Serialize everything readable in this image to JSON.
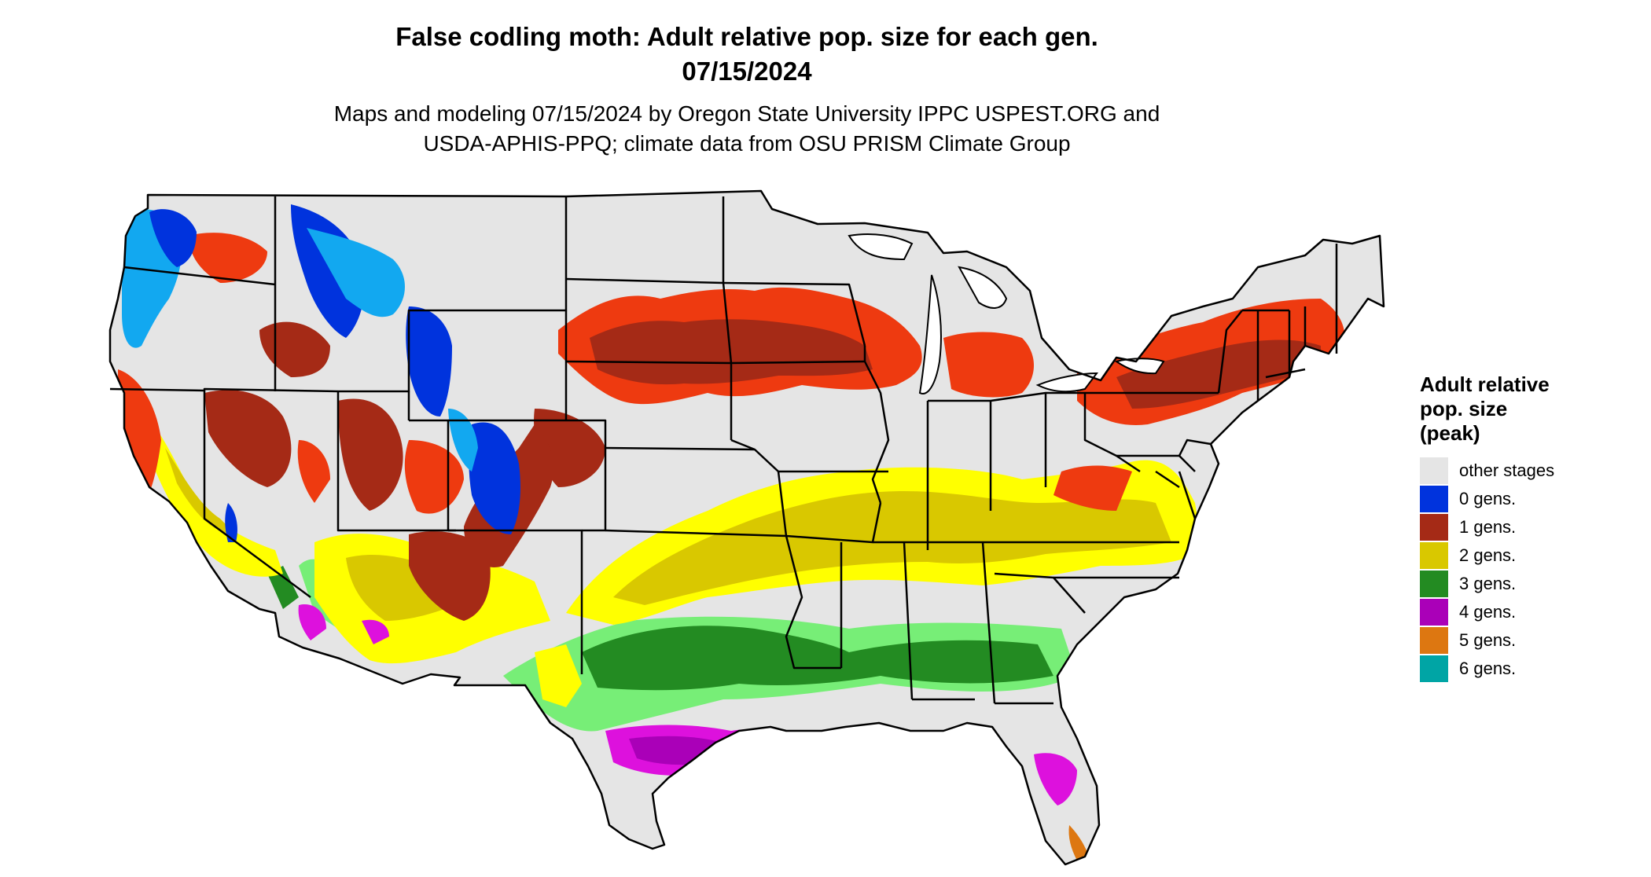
{
  "header": {
    "title_line1": "False codling moth: Adult relative pop. size for each gen.",
    "title_line2": "07/15/2024",
    "subtitle_line1": "Maps and modeling 07/15/2024 by Oregon State University IPPC USPEST.ORG and",
    "subtitle_line2": "USDA-APHIS-PPQ; climate data from OSU PRISM Climate Group"
  },
  "legend": {
    "title_line1": "Adult relative",
    "title_line2": "pop. size",
    "title_line3": "(peak)",
    "items": [
      {
        "label": "other stages",
        "color": "#e5e5e5"
      },
      {
        "label": "0 gens.",
        "color": "#0033dd"
      },
      {
        "label": "1 gens.",
        "color": "#a52a16"
      },
      {
        "label": "2 gens.",
        "color": "#d9c800"
      },
      {
        "label": "3 gens.",
        "color": "#238b22"
      },
      {
        "label": "4 gens.",
        "color": "#aa00b8"
      },
      {
        "label": "5 gens.",
        "color": "#dd7711"
      },
      {
        "label": "6 gens.",
        "color": "#00a5a5"
      }
    ]
  },
  "map_colors": {
    "background": "#e5e5e5",
    "zero_gens_light": "#12a8f0",
    "one_gens_light": "#ee3a10",
    "two_gens_light": "#ffff00",
    "three_gens_light": "#77ee77",
    "four_gens_light": "#dd11dd",
    "borders": "#000000"
  }
}
